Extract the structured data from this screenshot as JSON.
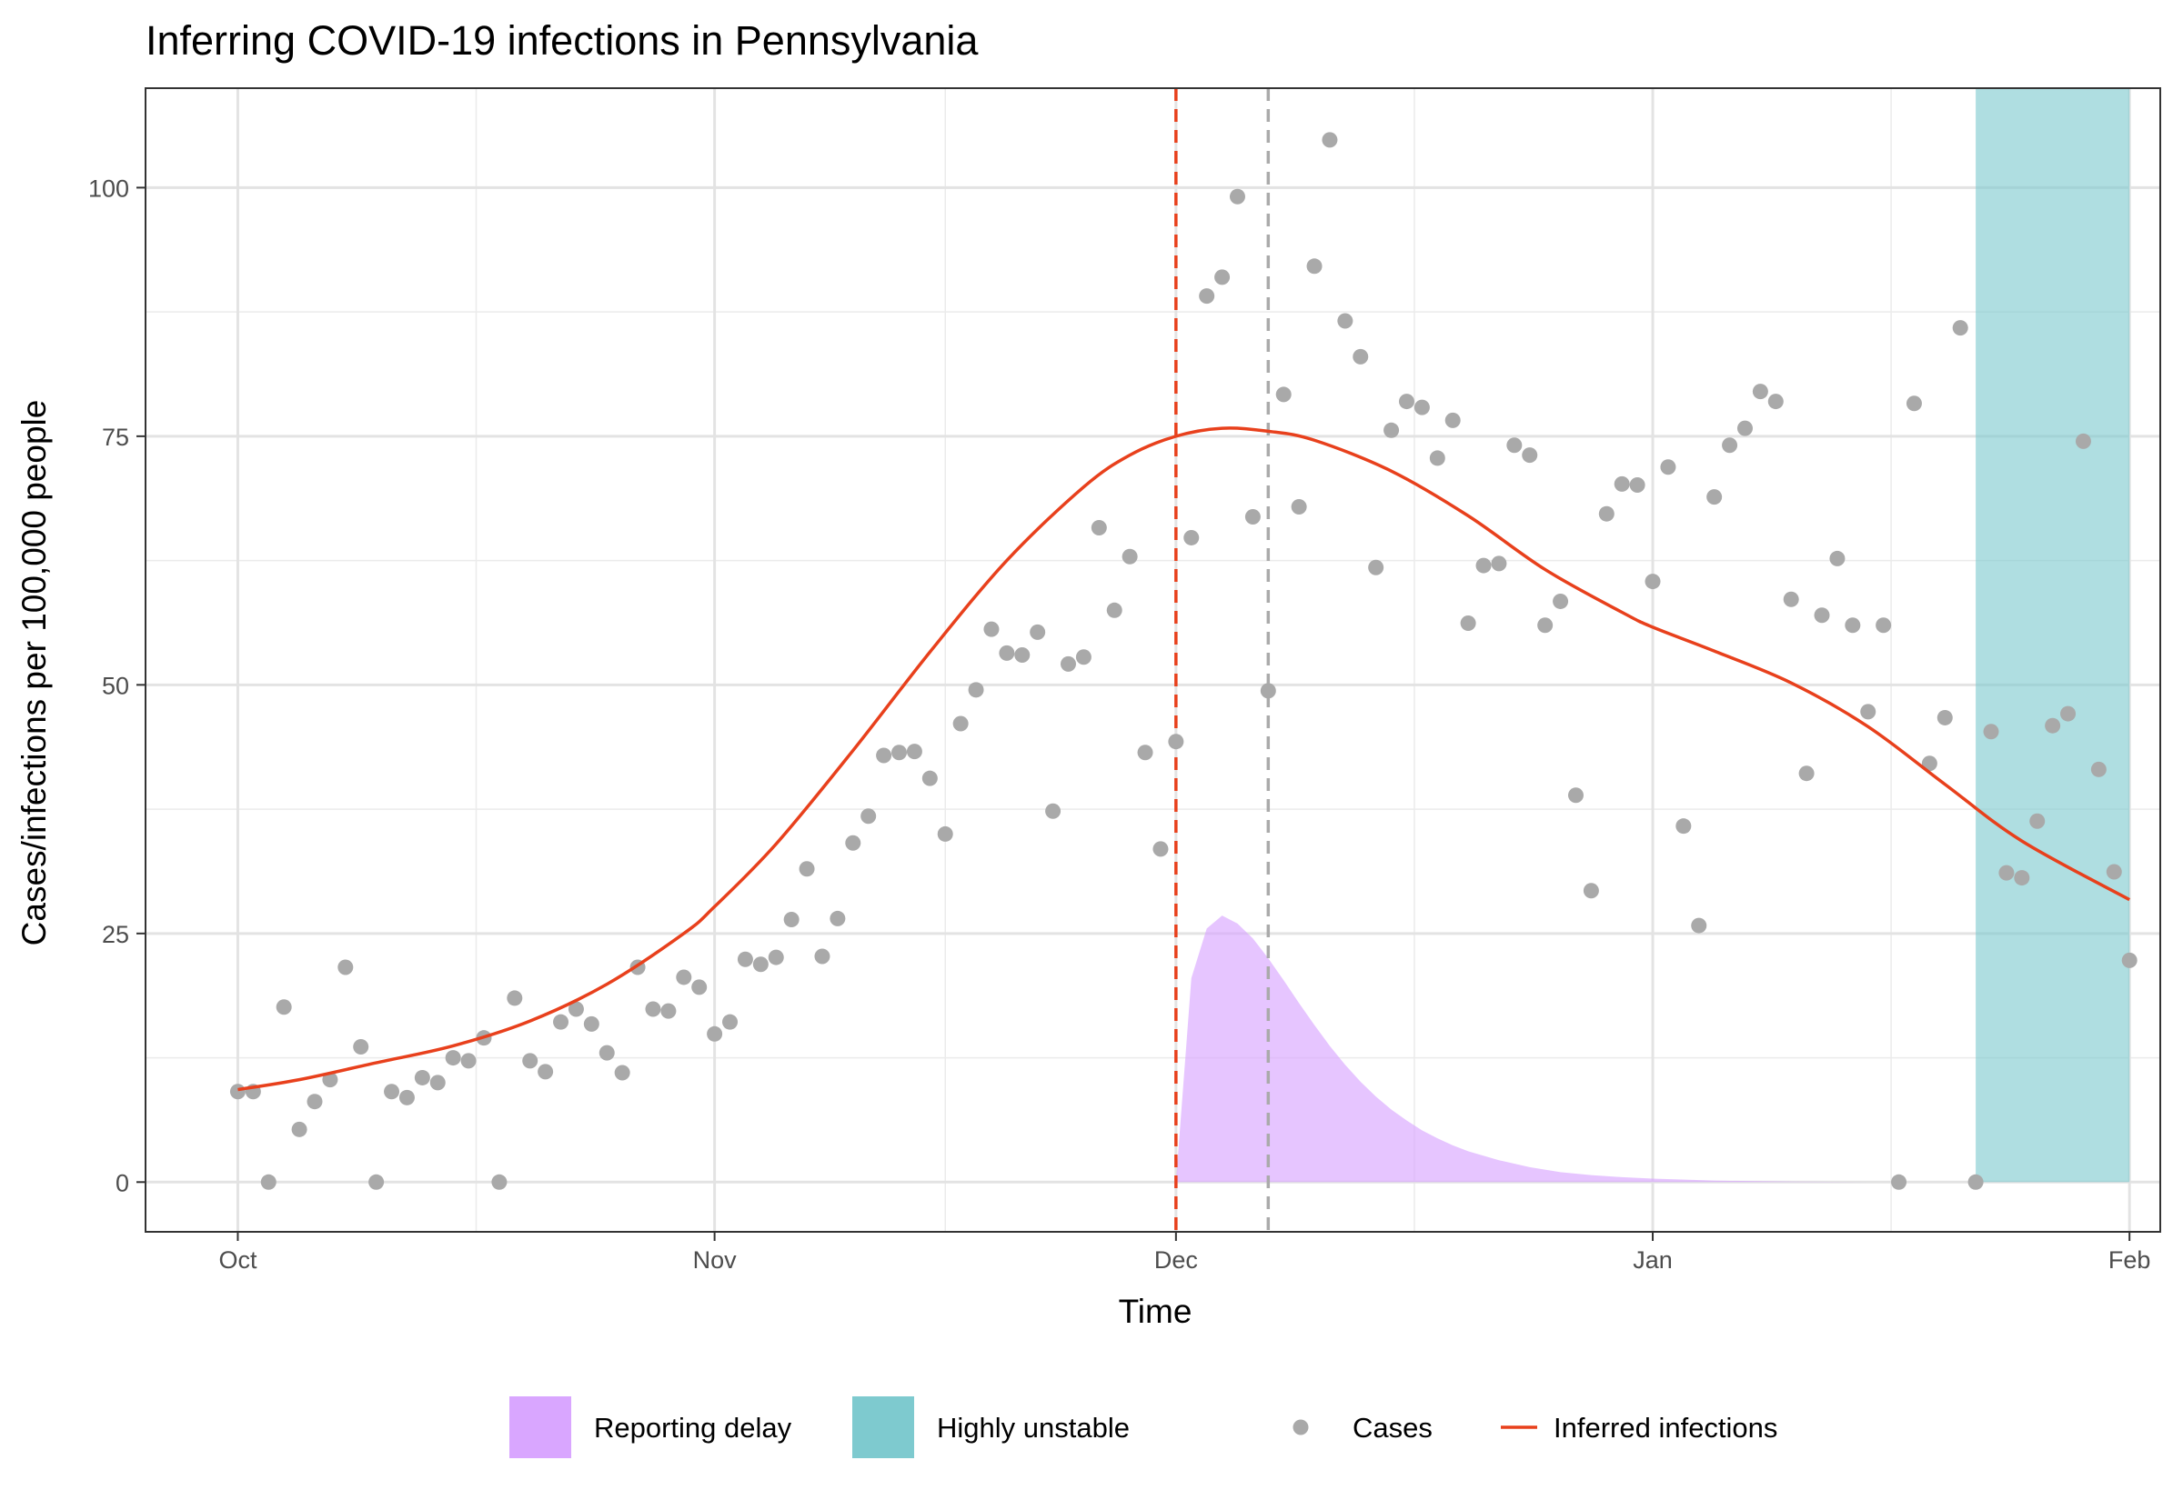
{
  "chart_data": {
    "type": "scatter",
    "title": "Inferring COVID-19 infections in Pennsylvania",
    "xlabel": "Time",
    "ylabel": "Cases/infections per 100,000 people",
    "x_axis_kind": "date",
    "x_range": [
      "2020-09-25",
      "2021-02-03"
    ],
    "ylim": [
      -5,
      110
    ],
    "x_ticks": [
      {
        "date": "2020-10-01",
        "label": "Oct"
      },
      {
        "date": "2020-11-01",
        "label": "Nov"
      },
      {
        "date": "2020-12-01",
        "label": "Dec"
      },
      {
        "date": "2021-01-01",
        "label": "Jan"
      },
      {
        "date": "2021-02-01",
        "label": "Feb"
      }
    ],
    "y_ticks": [
      0,
      25,
      50,
      75,
      100
    ],
    "grid": true,
    "legend_position": "bottom",
    "vlines": [
      {
        "date": "2020-12-01",
        "color": "#E8401C",
        "style": "dashed"
      },
      {
        "date": "2020-12-07",
        "color": "#AAAAAA",
        "style": "dashed"
      }
    ],
    "series": [
      {
        "name": "Reporting delay",
        "kind": "area",
        "color": "#D9A6FF",
        "points": [
          [
            "2020-12-01",
            0
          ],
          [
            "2020-12-02",
            20.5
          ],
          [
            "2020-12-03",
            25.5
          ],
          [
            "2020-12-04",
            26.8
          ],
          [
            "2020-12-05",
            26.0
          ],
          [
            "2020-12-06",
            24.5
          ],
          [
            "2020-12-07",
            22.5
          ],
          [
            "2020-12-08",
            20.3
          ],
          [
            "2020-12-09",
            18.0
          ],
          [
            "2020-12-10",
            15.8
          ],
          [
            "2020-12-11",
            13.7
          ],
          [
            "2020-12-12",
            11.8
          ],
          [
            "2020-12-13",
            10.1
          ],
          [
            "2020-12-14",
            8.6
          ],
          [
            "2020-12-15",
            7.3
          ],
          [
            "2020-12-16",
            6.2
          ],
          [
            "2020-12-17",
            5.2
          ],
          [
            "2020-12-18",
            4.4
          ],
          [
            "2020-12-19",
            3.7
          ],
          [
            "2020-12-20",
            3.1
          ],
          [
            "2020-12-22",
            2.2
          ],
          [
            "2020-12-24",
            1.5
          ],
          [
            "2020-12-26",
            1.0
          ],
          [
            "2020-12-28",
            0.7
          ],
          [
            "2020-12-30",
            0.5
          ],
          [
            "2021-01-01",
            0.35
          ],
          [
            "2021-01-05",
            0.15
          ],
          [
            "2021-01-10",
            0.05
          ],
          [
            "2021-01-15",
            0
          ]
        ]
      },
      {
        "name": "Highly unstable",
        "kind": "band",
        "color": "#7ECACF",
        "x_start": "2021-01-22",
        "x_end": "2021-02-01",
        "y_range": [
          0,
          110
        ]
      },
      {
        "name": "Cases",
        "kind": "points",
        "color": "#A9A9A9",
        "points": [
          [
            "2020-10-01",
            9.1
          ],
          [
            "2020-10-02",
            9.1
          ],
          [
            "2020-10-03",
            0
          ],
          [
            "2020-10-04",
            17.6
          ],
          [
            "2020-10-05",
            5.3
          ],
          [
            "2020-10-06",
            8.1
          ],
          [
            "2020-10-07",
            10.3
          ],
          [
            "2020-10-08",
            21.6
          ],
          [
            "2020-10-09",
            13.6
          ],
          [
            "2020-10-10",
            0
          ],
          [
            "2020-10-11",
            9.1
          ],
          [
            "2020-10-12",
            8.5
          ],
          [
            "2020-10-13",
            10.5
          ],
          [
            "2020-10-14",
            10.0
          ],
          [
            "2020-10-15",
            12.5
          ],
          [
            "2020-10-16",
            12.2
          ],
          [
            "2020-10-17",
            14.5
          ],
          [
            "2020-10-18",
            0
          ],
          [
            "2020-10-19",
            18.5
          ],
          [
            "2020-10-20",
            12.2
          ],
          [
            "2020-10-21",
            11.1
          ],
          [
            "2020-10-22",
            16.1
          ],
          [
            "2020-10-23",
            17.4
          ],
          [
            "2020-10-24",
            15.9
          ],
          [
            "2020-10-25",
            13.0
          ],
          [
            "2020-10-26",
            11.0
          ],
          [
            "2020-10-27",
            21.6
          ],
          [
            "2020-10-28",
            17.4
          ],
          [
            "2020-10-29",
            17.2
          ],
          [
            "2020-10-30",
            20.6
          ],
          [
            "2020-10-31",
            19.6
          ],
          [
            "2020-11-01",
            14.9
          ],
          [
            "2020-11-02",
            16.1
          ],
          [
            "2020-11-03",
            22.4
          ],
          [
            "2020-11-04",
            21.9
          ],
          [
            "2020-11-05",
            22.6
          ],
          [
            "2020-11-06",
            26.4
          ],
          [
            "2020-11-07",
            31.5
          ],
          [
            "2020-11-08",
            22.7
          ],
          [
            "2020-11-09",
            26.5
          ],
          [
            "2020-11-10",
            34.1
          ],
          [
            "2020-11-11",
            36.8
          ],
          [
            "2020-11-12",
            42.9
          ],
          [
            "2020-11-13",
            43.2
          ],
          [
            "2020-11-14",
            43.3
          ],
          [
            "2020-11-15",
            40.6
          ],
          [
            "2020-11-16",
            35.0
          ],
          [
            "2020-11-17",
            46.1
          ],
          [
            "2020-11-18",
            49.5
          ],
          [
            "2020-11-19",
            55.6
          ],
          [
            "2020-11-20",
            53.2
          ],
          [
            "2020-11-21",
            53.0
          ],
          [
            "2020-11-22",
            55.3
          ],
          [
            "2020-11-23",
            37.3
          ],
          [
            "2020-11-24",
            52.1
          ],
          [
            "2020-11-25",
            52.8
          ],
          [
            "2020-11-26",
            65.8
          ],
          [
            "2020-11-27",
            57.5
          ],
          [
            "2020-11-28",
            62.9
          ],
          [
            "2020-11-29",
            43.2
          ],
          [
            "2020-11-30",
            33.5
          ],
          [
            "2020-12-01",
            44.3
          ],
          [
            "2020-12-02",
            64.8
          ],
          [
            "2020-12-03",
            89.1
          ],
          [
            "2020-12-04",
            91.0
          ],
          [
            "2020-12-05",
            99.1
          ],
          [
            "2020-12-06",
            66.9
          ],
          [
            "2020-12-07",
            49.4
          ],
          [
            "2020-12-08",
            79.2
          ],
          [
            "2020-12-09",
            67.9
          ],
          [
            "2020-12-10",
            92.1
          ],
          [
            "2020-12-11",
            104.8
          ],
          [
            "2020-12-12",
            86.6
          ],
          [
            "2020-12-13",
            83.0
          ],
          [
            "2020-12-14",
            61.8
          ],
          [
            "2020-12-15",
            75.6
          ],
          [
            "2020-12-16",
            78.5
          ],
          [
            "2020-12-17",
            77.9
          ],
          [
            "2020-12-18",
            72.8
          ],
          [
            "2020-12-19",
            76.6
          ],
          [
            "2020-12-20",
            56.2
          ],
          [
            "2020-12-21",
            62.0
          ],
          [
            "2020-12-22",
            62.2
          ],
          [
            "2020-12-23",
            74.1
          ],
          [
            "2020-12-24",
            73.1
          ],
          [
            "2020-12-25",
            56.0
          ],
          [
            "2020-12-26",
            58.4
          ],
          [
            "2020-12-27",
            38.9
          ],
          [
            "2020-12-28",
            29.3
          ],
          [
            "2020-12-29",
            67.2
          ],
          [
            "2020-12-30",
            70.2
          ],
          [
            "2020-12-31",
            70.1
          ],
          [
            "2021-01-01",
            60.4
          ],
          [
            "2021-01-02",
            71.9
          ],
          [
            "2021-01-03",
            35.8
          ],
          [
            "2021-01-04",
            25.8
          ],
          [
            "2021-01-05",
            68.9
          ],
          [
            "2021-01-06",
            74.1
          ],
          [
            "2021-01-07",
            75.8
          ],
          [
            "2021-01-08",
            79.5
          ],
          [
            "2021-01-09",
            78.5
          ],
          [
            "2021-01-10",
            58.6
          ],
          [
            "2021-01-11",
            41.1
          ],
          [
            "2021-01-12",
            57.0
          ],
          [
            "2021-01-13",
            62.7
          ],
          [
            "2021-01-14",
            56.0
          ],
          [
            "2021-01-15",
            47.3
          ],
          [
            "2021-01-16",
            56.0
          ],
          [
            "2021-01-17",
            0
          ],
          [
            "2021-01-18",
            78.3
          ],
          [
            "2021-01-19",
            42.1
          ],
          [
            "2021-01-20",
            46.7
          ],
          [
            "2021-01-21",
            85.9
          ],
          [
            "2021-01-22",
            0
          ],
          [
            "2021-01-23",
            45.3
          ],
          [
            "2021-01-24",
            31.1
          ],
          [
            "2021-01-25",
            30.6
          ],
          [
            "2021-01-26",
            36.3
          ],
          [
            "2021-01-27",
            45.9
          ],
          [
            "2021-01-28",
            47.1
          ],
          [
            "2021-01-29",
            74.5
          ],
          [
            "2021-01-30",
            41.5
          ],
          [
            "2021-01-31",
            31.2
          ],
          [
            "2021-02-01",
            22.3
          ]
        ]
      },
      {
        "name": "Inferred infections",
        "kind": "line",
        "color": "#E8401C",
        "points": [
          [
            "2020-10-01",
            9.3
          ],
          [
            "2020-10-05",
            10.3
          ],
          [
            "2020-10-10",
            12.0
          ],
          [
            "2020-10-15",
            13.7
          ],
          [
            "2020-10-20",
            16.2
          ],
          [
            "2020-10-25",
            19.9
          ],
          [
            "2020-10-30",
            25.0
          ],
          [
            "2020-11-01",
            27.7
          ],
          [
            "2020-11-05",
            34.0
          ],
          [
            "2020-11-10",
            43.4
          ],
          [
            "2020-11-15",
            53.3
          ],
          [
            "2020-11-20",
            62.5
          ],
          [
            "2020-11-25",
            69.9
          ],
          [
            "2020-11-28",
            73.1
          ],
          [
            "2020-12-01",
            75.0
          ],
          [
            "2020-12-04",
            75.8
          ],
          [
            "2020-12-07",
            75.5
          ],
          [
            "2020-12-10",
            74.6
          ],
          [
            "2020-12-15",
            71.5
          ],
          [
            "2020-12-20",
            67.0
          ],
          [
            "2020-12-25",
            61.6
          ],
          [
            "2020-12-30",
            57.3
          ],
          [
            "2021-01-01",
            55.8
          ],
          [
            "2021-01-05",
            53.4
          ],
          [
            "2021-01-10",
            50.2
          ],
          [
            "2021-01-15",
            45.8
          ],
          [
            "2021-01-20",
            40.0
          ],
          [
            "2021-01-25",
            34.3
          ],
          [
            "2021-02-01",
            28.4
          ]
        ]
      }
    ]
  }
}
